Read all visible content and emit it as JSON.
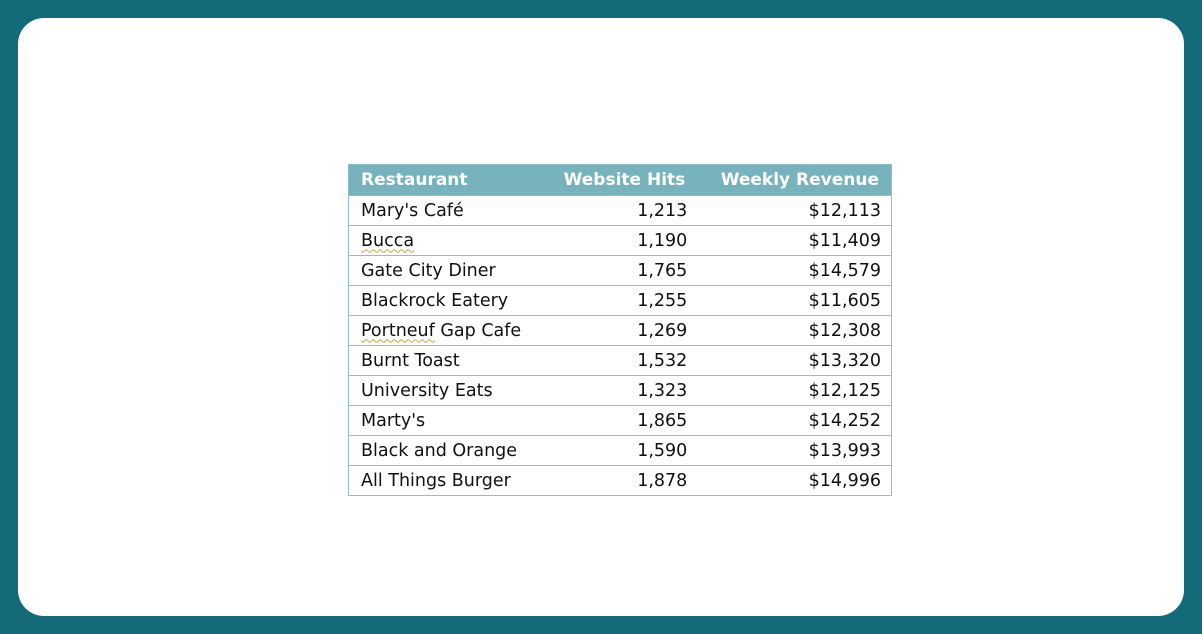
{
  "table": {
    "headers": [
      "Restaurant",
      "Website Hits",
      "Weekly Revenue"
    ],
    "rows": [
      {
        "name": "Mary's Café",
        "hits": "1,213",
        "revenue": "$12,113"
      },
      {
        "name": "Bucca",
        "hits": "1,190",
        "revenue": "$11,409"
      },
      {
        "name": "Gate City Diner",
        "hits": "1,765",
        "revenue": "$14,579"
      },
      {
        "name": "Blackrock Eatery",
        "hits": "1,255",
        "revenue": "$11,605"
      },
      {
        "name": "Portneuf Gap Cafe",
        "hits": "1,269",
        "revenue": "$12,308"
      },
      {
        "name": "Burnt Toast",
        "hits": "1,532",
        "revenue": "$13,320"
      },
      {
        "name": "University Eats",
        "hits": "1,323",
        "revenue": "$12,125"
      },
      {
        "name": "Marty's",
        "hits": "1,865",
        "revenue": "$14,252"
      },
      {
        "name": "Black and Orange",
        "hits": "1,590",
        "revenue": "$13,993"
      },
      {
        "name": "All Things Burger",
        "hits": "1,878",
        "revenue": "$14,996"
      }
    ]
  },
  "colors": {
    "background": "#136b7a",
    "header": "#78b2bd",
    "border": "#8fbfc9"
  }
}
